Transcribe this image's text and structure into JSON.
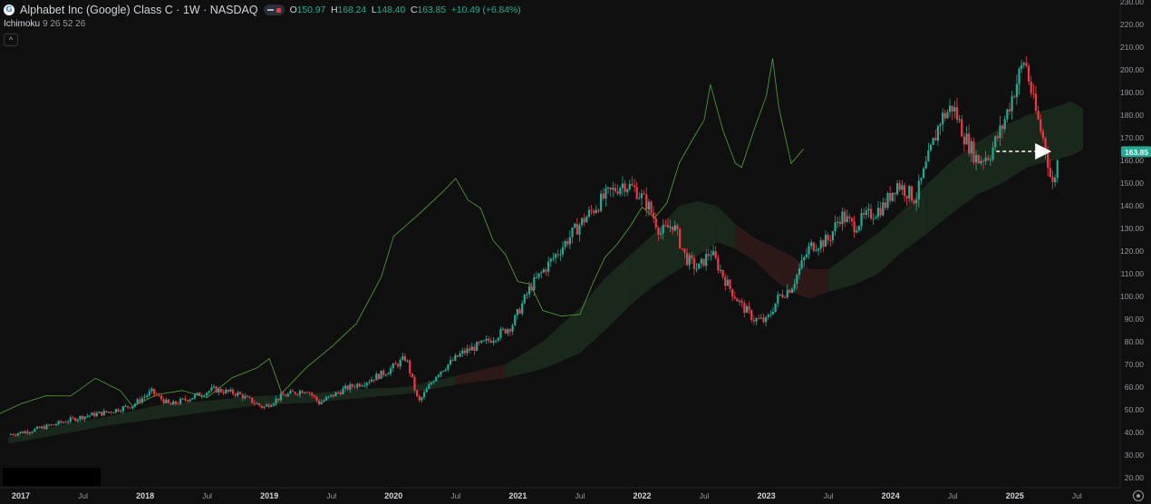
{
  "header": {
    "title": "Alphabet Inc (Google) Class C · 1W · NASDAQ",
    "logo_letter": "G",
    "ohlc": {
      "o_label": "O",
      "o": "150.97",
      "h_label": "H",
      "h": "168.24",
      "l_label": "L",
      "l": "148.40",
      "c_label": "C",
      "c": "163.85",
      "change": "+10.49 (+6.84%)"
    }
  },
  "indicator": {
    "name": "Ichimoku",
    "params": "9 26 52 26"
  },
  "icons": {
    "logo": "google-logo-icon",
    "collapse": "chevron-up-icon",
    "settings": "settings-icon"
  },
  "colors": {
    "up": "#22ab94",
    "down": "#f23645",
    "lagging": "#5fbf3a",
    "cloud_bull": "#1b2a1c",
    "cloud_bear": "#2e1a18",
    "price_tag": "#22ab94",
    "arrow": "#ffffff"
  },
  "chart_data": {
    "type": "candlestick",
    "timeframe": "1W",
    "symbol": "GOOG",
    "last_price": 163.85,
    "last_price_label": "163.85",
    "ylim": [
      20,
      230
    ],
    "y_ticks": [
      20,
      30,
      40,
      50,
      60,
      70,
      80,
      90,
      100,
      110,
      120,
      130,
      140,
      150,
      160,
      170,
      180,
      190,
      200,
      210,
      220,
      230
    ],
    "x_ticks": [
      {
        "label": "2017",
        "t": 2017.0
      },
      {
        "label": "Jul",
        "t": 2017.5
      },
      {
        "label": "2018",
        "t": 2018.0
      },
      {
        "label": "Jul",
        "t": 2018.5
      },
      {
        "label": "2019",
        "t": 2019.0
      },
      {
        "label": "Jul",
        "t": 2019.5
      },
      {
        "label": "2020",
        "t": 2020.0
      },
      {
        "label": "Jul",
        "t": 2020.5
      },
      {
        "label": "2021",
        "t": 2021.0
      },
      {
        "label": "Jul",
        "t": 2021.5
      },
      {
        "label": "2022",
        "t": 2022.0
      },
      {
        "label": "Jul",
        "t": 2022.5
      },
      {
        "label": "2023",
        "t": 2023.0
      },
      {
        "label": "Jul",
        "t": 2023.5
      },
      {
        "label": "2024",
        "t": 2024.0
      },
      {
        "label": "Jul",
        "t": 2024.5
      },
      {
        "label": "2025",
        "t": 2025.0
      },
      {
        "label": "Jul",
        "t": 2025.5
      }
    ],
    "price_path": [
      [
        2016.9,
        39
      ],
      [
        2017.1,
        41
      ],
      [
        2017.3,
        44
      ],
      [
        2017.5,
        47
      ],
      [
        2017.7,
        49
      ],
      [
        2017.9,
        52
      ],
      [
        2018.05,
        58
      ],
      [
        2018.2,
        52
      ],
      [
        2018.35,
        55
      ],
      [
        2018.55,
        59
      ],
      [
        2018.75,
        57
      ],
      [
        2018.95,
        51
      ],
      [
        2019.1,
        56
      ],
      [
        2019.3,
        59
      ],
      [
        2019.4,
        53
      ],
      [
        2019.6,
        59
      ],
      [
        2019.8,
        63
      ],
      [
        2019.95,
        67
      ],
      [
        2020.1,
        73
      ],
      [
        2020.2,
        53
      ],
      [
        2020.35,
        66
      ],
      [
        2020.55,
        75
      ],
      [
        2020.75,
        80
      ],
      [
        2020.95,
        87
      ],
      [
        2021.1,
        104
      ],
      [
        2021.3,
        118
      ],
      [
        2021.5,
        132
      ],
      [
        2021.7,
        144
      ],
      [
        2021.85,
        150
      ],
      [
        2021.95,
        147
      ],
      [
        2022.05,
        140
      ],
      [
        2022.15,
        128
      ],
      [
        2022.25,
        132
      ],
      [
        2022.35,
        117
      ],
      [
        2022.45,
        112
      ],
      [
        2022.55,
        120
      ],
      [
        2022.7,
        104
      ],
      [
        2022.8,
        96
      ],
      [
        2022.9,
        90
      ],
      [
        2023.0,
        89
      ],
      [
        2023.1,
        100
      ],
      [
        2023.2,
        104
      ],
      [
        2023.35,
        122
      ],
      [
        2023.5,
        125
      ],
      [
        2023.6,
        136
      ],
      [
        2023.7,
        131
      ],
      [
        2023.8,
        135
      ],
      [
        2023.95,
        140
      ],
      [
        2024.05,
        150
      ],
      [
        2024.2,
        143
      ],
      [
        2024.3,
        160
      ],
      [
        2024.4,
        178
      ],
      [
        2024.5,
        184
      ],
      [
        2024.6,
        170
      ],
      [
        2024.7,
        160
      ],
      [
        2024.8,
        163
      ],
      [
        2024.9,
        175
      ],
      [
        2025.0,
        192
      ],
      [
        2025.08,
        205
      ],
      [
        2025.15,
        185
      ],
      [
        2025.25,
        165
      ],
      [
        2025.3,
        148
      ],
      [
        2025.36,
        163.85
      ]
    ],
    "lagging_span": [
      [
        2016.4,
        40
      ],
      [
        2016.6,
        45
      ],
      [
        2016.8,
        49
      ],
      [
        2017.0,
        54
      ],
      [
        2017.2,
        57
      ],
      [
        2017.4,
        56
      ],
      [
        2017.6,
        63
      ],
      [
        2017.8,
        57
      ],
      [
        2017.9,
        53
      ],
      [
        2018.1,
        58
      ],
      [
        2018.3,
        59
      ],
      [
        2018.5,
        55
      ],
      [
        2018.7,
        63
      ],
      [
        2018.9,
        67
      ],
      [
        2019.0,
        74
      ],
      [
        2019.1,
        56
      ],
      [
        2019.3,
        68
      ],
      [
        2019.5,
        78
      ],
      [
        2019.7,
        89
      ],
      [
        2019.9,
        110
      ],
      [
        2020.0,
        125
      ],
      [
        2020.2,
        135
      ],
      [
        2020.4,
        146
      ],
      [
        2020.5,
        152
      ],
      [
        2020.6,
        143
      ],
      [
        2020.7,
        138
      ],
      [
        2020.8,
        126
      ],
      [
        2020.9,
        117
      ],
      [
        2021.0,
        108
      ],
      [
        2021.1,
        104
      ],
      [
        2021.2,
        95
      ],
      [
        2021.35,
        90
      ],
      [
        2021.5,
        92
      ],
      [
        2021.6,
        105
      ],
      [
        2021.7,
        118
      ],
      [
        2021.8,
        122
      ],
      [
        2021.9,
        132
      ],
      [
        2022.0,
        138
      ],
      [
        2022.1,
        136
      ],
      [
        2022.2,
        140
      ],
      [
        2022.3,
        160
      ],
      [
        2022.4,
        168
      ],
      [
        2022.5,
        178
      ],
      [
        2022.55,
        195
      ],
      [
        2022.65,
        172
      ],
      [
        2022.75,
        160
      ],
      [
        2022.8,
        158
      ],
      [
        2022.9,
        172
      ],
      [
        2023.0,
        190
      ],
      [
        2023.05,
        205
      ],
      [
        2023.1,
        182
      ],
      [
        2023.2,
        160
      ],
      [
        2023.3,
        164
      ]
    ],
    "cloud": [
      [
        2016.9,
        35,
        38
      ],
      [
        2017.3,
        39,
        43
      ],
      [
        2017.7,
        43,
        47
      ],
      [
        2018.1,
        46,
        52
      ],
      [
        2018.5,
        49,
        54
      ],
      [
        2018.9,
        52,
        56
      ],
      [
        2019.3,
        53,
        57
      ],
      [
        2019.7,
        55,
        59
      ],
      [
        2020.1,
        57,
        60
      ],
      [
        2020.5,
        61,
        65
      ],
      [
        2020.9,
        64,
        70
      ],
      [
        2021.2,
        68,
        80
      ],
      [
        2021.5,
        75,
        95
      ],
      [
        2021.7,
        85,
        108
      ],
      [
        2021.9,
        96,
        118
      ],
      [
        2022.1,
        105,
        128
      ],
      [
        2022.3,
        112,
        140
      ],
      [
        2022.45,
        118,
        142
      ],
      [
        2022.6,
        124,
        140
      ],
      [
        2022.75,
        121,
        132
      ],
      [
        2022.9,
        116,
        126
      ],
      [
        2023.05,
        108,
        122
      ],
      [
        2023.2,
        102,
        118
      ],
      [
        2023.35,
        99,
        112
      ],
      [
        2023.5,
        102,
        112
      ],
      [
        2023.7,
        105,
        120
      ],
      [
        2023.9,
        110,
        128
      ],
      [
        2024.1,
        120,
        138
      ],
      [
        2024.3,
        128,
        150
      ],
      [
        2024.5,
        137,
        160
      ],
      [
        2024.7,
        145,
        168
      ],
      [
        2024.9,
        150,
        175
      ],
      [
        2025.1,
        157,
        180
      ],
      [
        2025.3,
        160,
        183
      ],
      [
        2025.45,
        162,
        186
      ],
      [
        2025.55,
        165,
        183
      ]
    ],
    "bear_cloud_zones": [
      [
        2022.75,
        2023.55
      ],
      [
        2020.55,
        2020.75
      ]
    ],
    "annotation": {
      "type": "dashed-arrow",
      "from": [
        2024.85,
        164
      ],
      "to": [
        2025.28,
        164
      ]
    }
  }
}
